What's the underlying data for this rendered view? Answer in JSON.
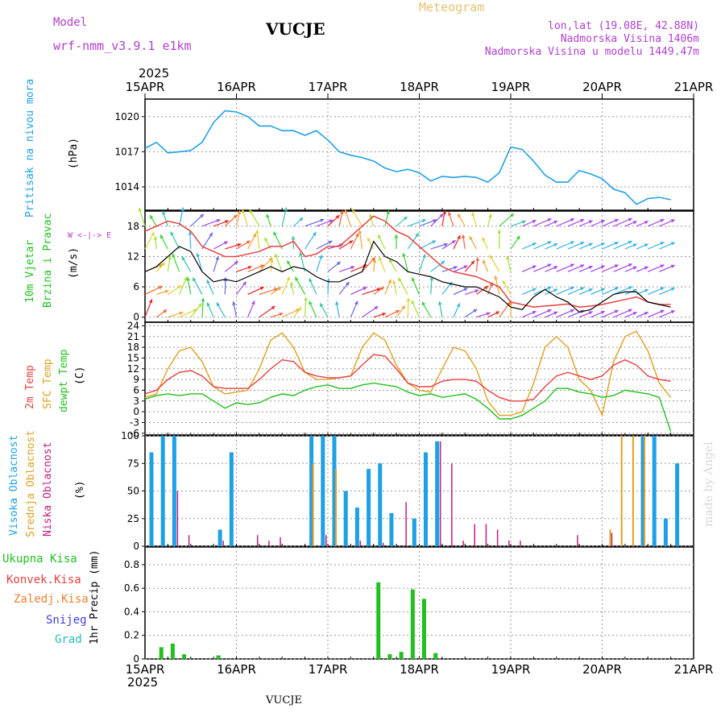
{
  "header": {
    "model_label": "Model",
    "model_name": "wrf-nmm_v3.9.1  e1km",
    "station": "VUCJE",
    "meteogram": "Meteogram",
    "lonlat": "lon,lat (19.08E, 42.88N)",
    "altitude": "Nadmorska Visina 1406m",
    "model_altitude": "Nadmorska Visina u modelu 1449.47m",
    "year": "2025",
    "footer_station": "VUCJE",
    "credit": "made by Angel"
  },
  "time_axis": {
    "labels": [
      "15APR",
      "16APR",
      "17APR",
      "18APR",
      "19APR",
      "20APR",
      "21APR"
    ]
  },
  "panels": {
    "pressure": {
      "title": "Pritisak na nivou mora",
      "unit": "(hPa)"
    },
    "wind": {
      "title1": "10m Vjetar",
      "title2": "Brzina i Pravac",
      "unit": "(m/s)",
      "compass": "W <-|-> E"
    },
    "temp": {
      "t2m": "2m Temp",
      "sfc": "SFC Temp",
      "dew": "dewpt Temp",
      "unit": "(C)"
    },
    "cloud": {
      "high": "Visoka Oblacnost",
      "mid": "Srednja Oblacnost",
      "low": "Niska Oblacnost",
      "unit": "(%)"
    },
    "precip": {
      "total": "Ukupna Kisa",
      "conv": "Konvek.Kisa",
      "frz": "Zaledj.Kisa",
      "snow": "Snijeg",
      "hail": "Grad",
      "title": "1hr Precip (mm)"
    }
  },
  "colors": {
    "pressure": "#1ea0ea",
    "t2m": "#e84040",
    "sfc": "#e0a020",
    "dew": "#20c020",
    "high": "#1ea0e6",
    "mid": "#e0a020",
    "low": "#c0207c",
    "precip": "#20c020",
    "wind_speed": "#000000",
    "gust": "#e84040",
    "purple": "#b040d0"
  },
  "chart_data": [
    {
      "type": "line",
      "name": "pressure",
      "x_start": "2025-04-15 00:00",
      "x_step_hours": 3,
      "ylim": [
        1012,
        1021.5
      ],
      "yticks": [
        1014,
        1017,
        1020
      ],
      "series": [
        {
          "name": "Pritisak na nivou mora",
          "values": [
            1017.3,
            1017.8,
            1016.9,
            1017.0,
            1017.1,
            1017.8,
            1019.5,
            1020.5,
            1020.4,
            1020.0,
            1019.2,
            1019.2,
            1018.8,
            1018.8,
            1018.4,
            1018.8,
            1018.0,
            1017.0,
            1016.7,
            1016.5,
            1016.2,
            1015.6,
            1015.3,
            1015.5,
            1015.2,
            1014.5,
            1014.9,
            1014.8,
            1014.9,
            1014.8,
            1014.4,
            1015.2,
            1017.4,
            1017.2,
            1016.2,
            1015.0,
            1014.4,
            1014.4,
            1015.4,
            1015.1,
            1014.7,
            1013.8,
            1013.5,
            1012.5,
            1013.0,
            1013.1,
            1012.9
          ]
        }
      ]
    },
    {
      "type": "line",
      "name": "wind",
      "x_start": "2025-04-15 00:00",
      "x_step_hours": 3,
      "ylim": [
        -1,
        21
      ],
      "yticks": [
        0,
        6,
        12,
        18
      ],
      "series": [
        {
          "name": "speed",
          "values": [
            9,
            10,
            12,
            14,
            13,
            9,
            7,
            7.5,
            7,
            8,
            9,
            10,
            9,
            10,
            9.5,
            8,
            7,
            7,
            8,
            9,
            15,
            12,
            11,
            9,
            8.5,
            8,
            7,
            6.5,
            6,
            6,
            5,
            4,
            2,
            1.5,
            4,
            5.5,
            4,
            3,
            1,
            1.5,
            3,
            4.5,
            5,
            5,
            3,
            2.5,
            2
          ]
        },
        {
          "name": "gust",
          "values": [
            17,
            18,
            19,
            18.5,
            17,
            14,
            13,
            12,
            12,
            12.5,
            13,
            14,
            14,
            15,
            12,
            12.5,
            14,
            14,
            16,
            18,
            20,
            19,
            17,
            16,
            14,
            12,
            10,
            9,
            8.5,
            8,
            7,
            6,
            3,
            2.5,
            2,
            2.2,
            2.4,
            2.6,
            2,
            2.2,
            2.5,
            3,
            3.5,
            4,
            3,
            2.5,
            2.5
          ]
        }
      ]
    },
    {
      "type": "line",
      "name": "temperature",
      "x_start": "2025-04-15 00:00",
      "x_step_hours": 3,
      "ylim": [
        -6.5,
        25
      ],
      "yticks": [
        -6,
        -3,
        0,
        3,
        6,
        9,
        12,
        15,
        18,
        21,
        24
      ],
      "series": [
        {
          "name": "2m Temp",
          "values": [
            5,
            6,
            9,
            11,
            11.5,
            10,
            7,
            6.5,
            6.5,
            6.5,
            9,
            12,
            14.5,
            14,
            11,
            10,
            9.5,
            9.5,
            10,
            13,
            16,
            15.5,
            12,
            8,
            7,
            7,
            8.5,
            9,
            9,
            8.5,
            6,
            4,
            3,
            3,
            3.5,
            7,
            10,
            11,
            10,
            9,
            10,
            13,
            14.5,
            13,
            10,
            9,
            8.5
          ]
        },
        {
          "name": "SFC Temp",
          "values": [
            4,
            5,
            12,
            17,
            18,
            14,
            7,
            5,
            5.5,
            6,
            12,
            20,
            22,
            18,
            11,
            9,
            9,
            9.5,
            10,
            18,
            22,
            20,
            13,
            8,
            6,
            5.5,
            12,
            18,
            17,
            12,
            3,
            -1,
            -1,
            0,
            8,
            18,
            21,
            18,
            9,
            6,
            -1,
            14,
            21,
            22.5,
            17,
            8,
            4
          ]
        },
        {
          "name": "dewpt Temp",
          "values": [
            3.5,
            4.5,
            5,
            4.5,
            5,
            5,
            3,
            1,
            2.5,
            2,
            2.5,
            4,
            5,
            4.5,
            6,
            7,
            7.5,
            6.5,
            6.5,
            7.5,
            8,
            7.5,
            7,
            5.5,
            4.5,
            5,
            4,
            4.5,
            5,
            3.5,
            1,
            -2,
            -2,
            -1,
            1,
            3,
            6.5,
            6.5,
            5.5,
            5,
            4,
            4.5,
            6,
            5.5,
            5,
            4,
            -5.5
          ]
        }
      ]
    },
    {
      "type": "bar",
      "name": "cloud",
      "x_start": "2025-04-15 00:00",
      "x_step_hours": 3,
      "ylim": [
        0,
        100
      ],
      "yticks": [
        0,
        25,
        50,
        75,
        100
      ],
      "series": [
        {
          "name": "Visoka Oblacnost",
          "values": [
            85,
            100,
            100,
            0,
            0,
            0,
            15,
            85,
            0,
            0,
            0,
            0,
            0,
            0,
            100,
            100,
            100,
            50,
            35,
            70,
            75,
            30,
            0,
            25,
            85,
            95,
            0,
            0,
            0,
            0,
            0,
            0,
            0,
            0,
            0,
            0,
            0,
            0,
            0,
            0,
            0,
            0,
            0,
            100,
            100,
            25,
            75
          ]
        },
        {
          "name": "Srednja Oblacnost",
          "values": [
            0,
            0,
            0,
            0,
            0,
            0,
            0,
            0,
            0,
            0,
            0,
            0,
            0,
            0,
            75,
            0,
            70,
            0,
            0,
            0,
            0,
            0,
            0,
            0,
            0,
            0,
            0,
            0,
            0,
            0,
            0,
            0,
            0,
            0,
            0,
            0,
            0,
            0,
            0,
            0,
            15,
            100,
            100,
            100,
            0,
            0,
            0
          ]
        },
        {
          "name": "Niska Oblacnost",
          "values": [
            0,
            0,
            50,
            10,
            0,
            0,
            5,
            0,
            0,
            10,
            5,
            8,
            0,
            0,
            0,
            10,
            0,
            0,
            5,
            0,
            3,
            0,
            40,
            0,
            0,
            95,
            75,
            5,
            20,
            20,
            15,
            5,
            5,
            0,
            0,
            0,
            0,
            10,
            0,
            0,
            12,
            0,
            0,
            0,
            0,
            0,
            0
          ]
        }
      ]
    },
    {
      "type": "bar",
      "name": "precipitation",
      "x_start": "2025-04-15 00:00",
      "x_step_hours": 3,
      "ylim": [
        0,
        0.95
      ],
      "yticks": [
        0,
        0.2,
        0.4,
        0.6,
        0.8
      ],
      "series": [
        {
          "name": "Ukupna Kisa",
          "values": [
            0,
            0.1,
            0.13,
            0.04,
            0,
            0,
            0.03,
            0,
            0,
            0,
            0,
            0,
            0,
            0,
            0,
            0,
            0,
            0,
            0,
            0,
            0.65,
            0.04,
            0.06,
            0.59,
            0.51,
            0.05,
            0,
            0,
            0,
            0,
            0,
            0,
            0,
            0,
            0,
            0,
            0,
            0,
            0,
            0,
            0,
            0,
            0,
            0,
            0,
            0,
            0
          ]
        }
      ]
    }
  ]
}
